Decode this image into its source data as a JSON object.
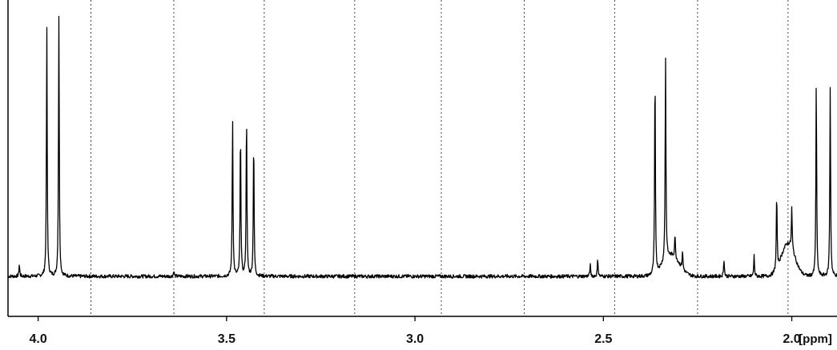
{
  "chart_data": {
    "type": "line",
    "xlabel": "[ppm]",
    "x_range": [
      4.08,
      1.88
    ],
    "x_reversed": true,
    "x_ticks": [
      {
        "value": 4.0,
        "label": "4.0"
      },
      {
        "value": 3.5,
        "label": "3.5"
      },
      {
        "value": 3.0,
        "label": "3.0"
      },
      {
        "value": 2.5,
        "label": "2.5"
      },
      {
        "value": 2.0,
        "label": "2.0"
      }
    ],
    "y_range": [
      0,
      1
    ],
    "grid": {
      "vertical_dotted_ppm": [
        3.86,
        3.64,
        3.4,
        3.16,
        2.93,
        2.71,
        2.47,
        2.25,
        2.01
      ]
    },
    "baseline": 0.08,
    "line_color": "#000000",
    "peaks": [
      {
        "ppm": 4.05,
        "height": 0.12
      },
      {
        "ppm": 3.977,
        "height": 0.92
      },
      {
        "ppm": 3.945,
        "height": 0.96
      },
      {
        "ppm": 3.64,
        "height": 0.1
      },
      {
        "ppm": 3.484,
        "height": 0.62
      },
      {
        "ppm": 3.463,
        "height": 0.58
      },
      {
        "ppm": 3.447,
        "height": 0.64
      },
      {
        "ppm": 3.428,
        "height": 0.55
      },
      {
        "ppm": 2.535,
        "height": 0.12
      },
      {
        "ppm": 2.515,
        "height": 0.14
      },
      {
        "ppm": 2.363,
        "height": 0.77
      },
      {
        "ppm": 2.335,
        "height": 0.77
      },
      {
        "ppm": 2.31,
        "height": 0.16
      },
      {
        "ppm": 2.29,
        "height": 0.14
      },
      {
        "ppm": 2.18,
        "height": 0.14
      },
      {
        "ppm": 2.1,
        "height": 0.15
      },
      {
        "ppm": 2.04,
        "height": 0.34
      },
      {
        "ppm": 2.0,
        "height": 0.22
      },
      {
        "ppm": 1.935,
        "height": 0.74
      },
      {
        "ppm": 1.898,
        "height": 0.72
      }
    ],
    "humps": [
      {
        "ppm": 2.32,
        "height": 0.07,
        "width": 0.03
      },
      {
        "ppm": 2.01,
        "height": 0.11,
        "width": 0.025
      }
    ]
  }
}
